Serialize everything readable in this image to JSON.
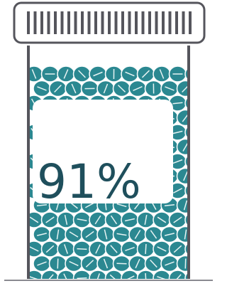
{
  "stat": {
    "label": "91%"
  }
}
